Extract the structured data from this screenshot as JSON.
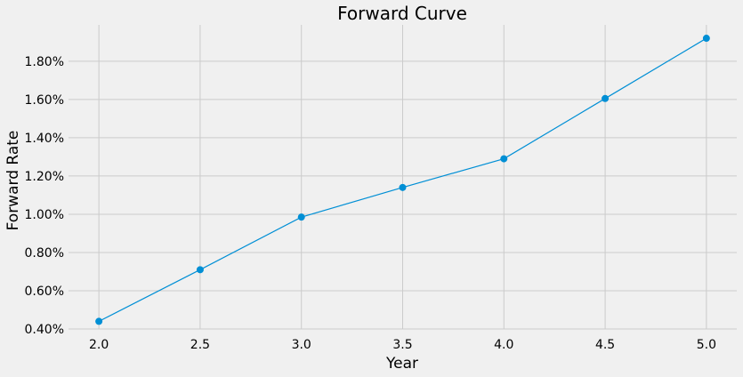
{
  "chart_data": {
    "type": "line",
    "title": "Forward Curve",
    "xlabel": "Year",
    "ylabel": "Forward Rate",
    "x": [
      2.0,
      2.5,
      3.0,
      3.5,
      4.0,
      4.5,
      5.0
    ],
    "series": [
      {
        "values": [
          0.44,
          0.71,
          0.985,
          1.14,
          1.29,
          1.605,
          1.92
        ],
        "color": "#008fd5",
        "marker": "circle"
      }
    ],
    "xticks": [
      "2.0",
      "2.5",
      "3.0",
      "3.5",
      "4.0",
      "4.5",
      "5.0"
    ],
    "yticks": [
      "0.40%",
      "0.60%",
      "0.80%",
      "1.00%",
      "1.20%",
      "1.40%",
      "1.60%",
      "1.80%"
    ],
    "xlim": [
      1.85,
      5.15
    ],
    "ylim": [
      0.4,
      1.99
    ],
    "grid": true,
    "background_color": "#f0f0f0",
    "grid_color": "#cbcbcb"
  }
}
